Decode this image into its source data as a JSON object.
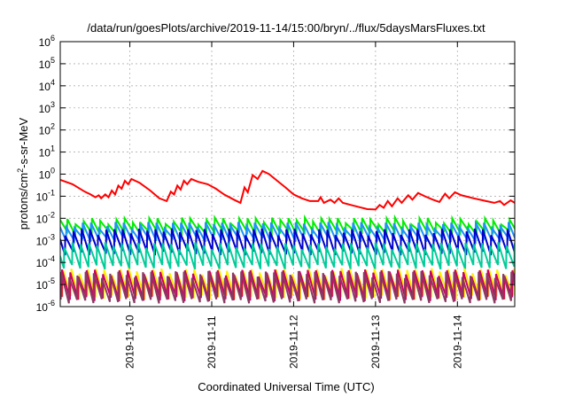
{
  "chart_data": {
    "type": "line",
    "title": "/data/run/goesPlots/archive/2019-11-14/15:00/bryn/../flux/5daysMarsFluxes.txt",
    "xlabel": "Coordinated Universal Time (UTC)",
    "ylabel": "protons/cm²-s-sr-MeV",
    "ylabel_parts": {
      "base": "protons/cm",
      "sup": "2",
      "rest": "-s-sr-MeV"
    },
    "y_scale": "log",
    "ylim": [
      1e-06,
      1000000.0
    ],
    "y_ticks": [
      {
        "base": "10",
        "exp": "-6",
        "value": 1e-06
      },
      {
        "base": "10",
        "exp": "-5",
        "value": 1e-05
      },
      {
        "base": "10",
        "exp": "-4",
        "value": 0.0001
      },
      {
        "base": "10",
        "exp": "-3",
        "value": 0.001
      },
      {
        "base": "10",
        "exp": "-2",
        "value": 0.01
      },
      {
        "base": "10",
        "exp": "-1",
        "value": 0.1
      },
      {
        "base": "10",
        "exp": "0",
        "value": 1
      },
      {
        "base": "10",
        "exp": "1",
        "value": 10
      },
      {
        "base": "10",
        "exp": "2",
        "value": 100
      },
      {
        "base": "10",
        "exp": "3",
        "value": 1000
      },
      {
        "base": "10",
        "exp": "4",
        "value": 10000
      },
      {
        "base": "10",
        "exp": "5",
        "value": 100000
      },
      {
        "base": "10",
        "exp": "6",
        "value": 1000000
      }
    ],
    "x_range_days": [
      -0.85,
      4.7
    ],
    "x_tick_labels": [
      "2019-11-10",
      "2019-11-11",
      "2019-11-12",
      "2019-11-13",
      "2019-11-14"
    ],
    "grid": true,
    "series": [
      {
        "color": "#ff0000",
        "points": [
          [
            -0.85,
            0.55
          ],
          [
            -0.7,
            0.35
          ],
          [
            -0.55,
            0.16
          ],
          [
            -0.48,
            0.12
          ],
          [
            -0.42,
            0.09
          ],
          [
            -0.38,
            0.11
          ],
          [
            -0.35,
            0.08
          ],
          [
            -0.3,
            0.12
          ],
          [
            -0.26,
            0.09
          ],
          [
            -0.22,
            0.18
          ],
          [
            -0.18,
            0.12
          ],
          [
            -0.14,
            0.3
          ],
          [
            -0.1,
            0.22
          ],
          [
            -0.06,
            0.5
          ],
          [
            -0.02,
            0.35
          ],
          [
            0.02,
            0.6
          ],
          [
            0.12,
            0.4
          ],
          [
            0.25,
            0.18
          ],
          [
            0.36,
            0.08
          ],
          [
            0.45,
            0.06
          ],
          [
            0.5,
            0.16
          ],
          [
            0.54,
            0.12
          ],
          [
            0.58,
            0.3
          ],
          [
            0.62,
            0.2
          ],
          [
            0.66,
            0.5
          ],
          [
            0.7,
            0.35
          ],
          [
            0.75,
            0.6
          ],
          [
            0.83,
            0.45
          ],
          [
            0.95,
            0.35
          ],
          [
            1.05,
            0.22
          ],
          [
            1.15,
            0.12
          ],
          [
            1.27,
            0.07
          ],
          [
            1.35,
            0.05
          ],
          [
            1.4,
            0.25
          ],
          [
            1.44,
            0.15
          ],
          [
            1.5,
            0.9
          ],
          [
            1.56,
            0.6
          ],
          [
            1.62,
            1.4
          ],
          [
            1.7,
            1.0
          ],
          [
            1.8,
            0.5
          ],
          [
            1.9,
            0.25
          ],
          [
            2.0,
            0.12
          ],
          [
            2.1,
            0.08
          ],
          [
            2.2,
            0.06
          ],
          [
            2.3,
            0.06
          ],
          [
            2.33,
            0.09
          ],
          [
            2.37,
            0.05
          ],
          [
            2.45,
            0.07
          ],
          [
            2.5,
            0.05
          ],
          [
            2.55,
            0.08
          ],
          [
            2.6,
            0.05
          ],
          [
            2.7,
            0.04
          ],
          [
            2.8,
            0.032
          ],
          [
            2.9,
            0.026
          ],
          [
            3.0,
            0.025
          ],
          [
            3.05,
            0.04
          ],
          [
            3.1,
            0.03
          ],
          [
            3.15,
            0.06
          ],
          [
            3.2,
            0.035
          ],
          [
            3.27,
            0.08
          ],
          [
            3.32,
            0.05
          ],
          [
            3.4,
            0.11
          ],
          [
            3.45,
            0.07
          ],
          [
            3.52,
            0.14
          ],
          [
            3.6,
            0.1
          ],
          [
            3.7,
            0.07
          ],
          [
            3.78,
            0.055
          ],
          [
            3.85,
            0.13
          ],
          [
            3.9,
            0.08
          ],
          [
            3.97,
            0.15
          ],
          [
            4.05,
            0.11
          ],
          [
            4.2,
            0.08
          ],
          [
            4.35,
            0.06
          ],
          [
            4.45,
            0.05
          ],
          [
            4.52,
            0.06
          ],
          [
            4.57,
            0.04
          ],
          [
            4.65,
            0.065
          ],
          [
            4.7,
            0.05
          ]
        ]
      },
      {
        "color": "#00ee00",
        "base": 0.0025,
        "peak": 0.008
      },
      {
        "color": "#1e90ff",
        "base": 0.0012,
        "peak": 0.005
      },
      {
        "color": "#0000cc",
        "base": 0.0003,
        "peak": 0.0025
      },
      {
        "color": "#00cc99",
        "base": 7e-05,
        "peak": 0.0006
      },
      {
        "color": "#ffee00",
        "base": 3e-06,
        "peak": 4e-05
      },
      {
        "color": "#cc0066",
        "base": 2.5e-06,
        "peak": 3.5e-05
      },
      {
        "color": "#8b3a62",
        "base": 2e-06,
        "peak": 3e-05
      }
    ],
    "sawtooth_period_days": 0.1
  }
}
